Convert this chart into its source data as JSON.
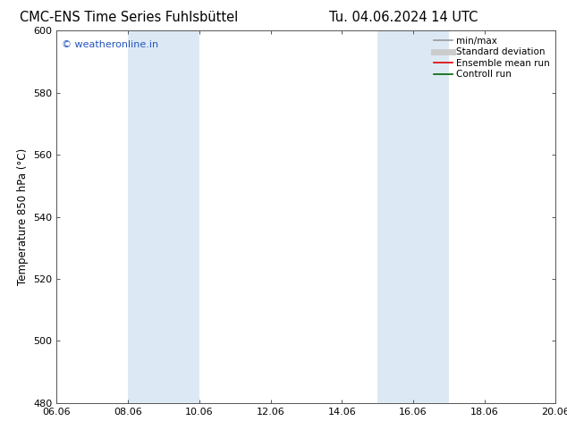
{
  "title_left": "CMC-ENS Time Series Fuhlsbüttel",
  "title_right": "Tu. 04.06.2024 14 UTC",
  "ylabel": "Temperature 850 hPa (°C)",
  "ylim": [
    480,
    600
  ],
  "yticks": [
    480,
    500,
    520,
    540,
    560,
    580,
    600
  ],
  "xlim_num": [
    0,
    14
  ],
  "xtick_positions": [
    0,
    2,
    4,
    6,
    8,
    10,
    12,
    14
  ],
  "xtick_labels": [
    "06.06",
    "08.06",
    "10.06",
    "12.06",
    "14.06",
    "16.06",
    "18.06",
    "20.06"
  ],
  "shade_bands": [
    {
      "xmin": 2,
      "xmax": 4
    },
    {
      "xmin": 9,
      "xmax": 11
    }
  ],
  "shade_color": "#dce9f5",
  "watermark": "© weatheronline.in",
  "watermark_color": "#2255bb",
  "legend_items": [
    {
      "label": "min/max",
      "color": "#999999",
      "lw": 1.2,
      "style": "-"
    },
    {
      "label": "Standard deviation",
      "color": "#cccccc",
      "lw": 5,
      "style": "-"
    },
    {
      "label": "Ensemble mean run",
      "color": "#dd0000",
      "lw": 1.2,
      "style": "-"
    },
    {
      "label": "Controll run",
      "color": "#006600",
      "lw": 1.2,
      "style": "-"
    }
  ],
  "bg_color": "#ffffff",
  "title_fontsize": 10.5,
  "axis_fontsize": 8.5,
  "tick_fontsize": 8,
  "legend_fontsize": 7.5,
  "watermark_fontsize": 8
}
